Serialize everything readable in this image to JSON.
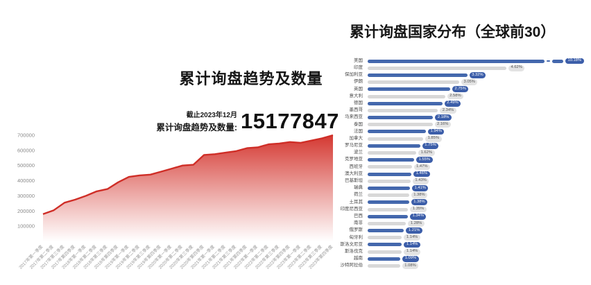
{
  "page": {
    "background": "#ffffff"
  },
  "left_chart": {
    "title": "累计询盘趋势及数量",
    "note": "截止2023年12月",
    "total_label": "累计询盘趋势及数量:",
    "total_value": "15177847"
  },
  "right_chart": {
    "title": "累计询盘国家分布（全球前30）"
  },
  "colors": {
    "area_red": "#d3322b",
    "line_red": "#cf2e27",
    "bar_blue": "#4468ad",
    "bar_gray": "#d8d8d8",
    "badge_blue": "#3c5ea9",
    "badge_gray": "#e3e3e3"
  },
  "chart_data": [
    {
      "type": "area",
      "title": "累计询盘趋势及数量",
      "xlabel": "",
      "ylabel": "",
      "grid": false,
      "ylim": [
        0,
        700000
      ],
      "yticks": [
        100000,
        200000,
        300000,
        400000,
        500000,
        600000,
        700000
      ],
      "x": [
        "2017年第一季度",
        "2017年第二季度",
        "2017年第三季度",
        "2017年第四季度",
        "2018年第一季度",
        "2018年第二季度",
        "2018年第三季度",
        "2018年第四季度",
        "2019年第一季度",
        "2019年第二季度",
        "2019年第三季度",
        "2019年第四季度",
        "2020年第一季度",
        "2020年第二季度",
        "2020年第三季度",
        "2020年第四季度",
        "2021年第一季度",
        "2021年第二季度",
        "2021年第三季度",
        "2021年第四季度",
        "2022年第一季度",
        "2022年第二季度",
        "2022年第三季度",
        "2022年第四季度",
        "2023年第一季度",
        "2023年第二季度",
        "2023年第三季度",
        "2023年第四季度"
      ],
      "values": [
        180000,
        205000,
        255000,
        275000,
        300000,
        330000,
        345000,
        390000,
        425000,
        435000,
        440000,
        460000,
        480000,
        500000,
        505000,
        570000,
        575000,
        585000,
        595000,
        615000,
        620000,
        640000,
        645000,
        655000,
        650000,
        665000,
        680000,
        700000
      ]
    },
    {
      "type": "bar",
      "orientation": "horizontal",
      "title": "累计询盘国家分布（全球前30）",
      "xlabel": "",
      "ylabel": "",
      "legend": "none",
      "break_first": true,
      "scale_full_length_pct": 4.62,
      "categories": [
        "美国",
        "印度",
        "保加利亚",
        "伊朗",
        "英国",
        "意大利",
        "德国",
        "墨西哥",
        "马来西亚",
        "泰国",
        "法国",
        "加拿大",
        "罗马尼亚",
        "波兰",
        "克罗地亚",
        "西班牙",
        "澳大利亚",
        "巴基斯坦",
        "瑞典",
        "荷兰",
        "土耳其",
        "印度尼西亚",
        "巴西",
        "南非",
        "俄罗斯",
        "匈牙利",
        "斯洛文尼亚",
        "斯洛伐克",
        "越南",
        "沙特阿拉伯"
      ],
      "values": [
        10.18,
        4.62,
        3.32,
        3.05,
        2.75,
        2.58,
        2.49,
        2.34,
        2.18,
        2.16,
        1.94,
        1.85,
        1.75,
        1.62,
        1.55,
        1.47,
        1.46,
        1.43,
        1.41,
        1.38,
        1.38,
        1.35,
        1.34,
        1.28,
        1.21,
        1.14,
        1.14,
        1.14,
        1.09,
        1.08
      ],
      "labels": [
        "10.18%",
        "4.62%",
        "3.32%",
        "3.05%",
        "2.75%",
        "2.58%",
        "2.49%",
        "2.34%",
        "2.18%",
        "2.16%",
        "1.94%",
        "1.85%",
        "1.75%",
        "1.62%",
        "1.55%",
        "1.47%",
        "1.46%",
        "1.43%",
        "1.41%",
        "1.38%",
        "1.38%",
        "1.35%",
        "1.34%",
        "1.28%",
        "1.21%",
        "1.14%",
        "1.14%",
        "1.14%",
        "1.09%",
        "1.08%"
      ]
    }
  ]
}
